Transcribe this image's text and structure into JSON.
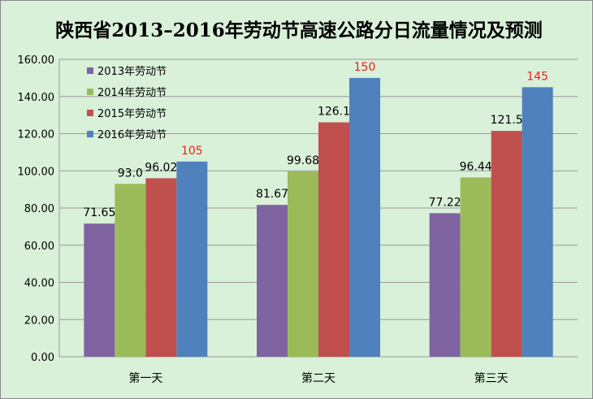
{
  "chart_data": {
    "type": "bar",
    "title": "陕西省2013–2016年劳动节高速公路分日流量情况及预测",
    "categories": [
      "第一天",
      "第二天",
      "第三天"
    ],
    "series": [
      {
        "name": "2013年劳动节",
        "color": "#8064a2",
        "values": [
          71.65,
          81.67,
          77.22
        ],
        "labels": [
          "71.65",
          "81.67",
          "77.22"
        ]
      },
      {
        "name": "2014年劳动节",
        "color": "#9bbb59",
        "values": [
          93.0,
          99.68,
          96.44
        ],
        "labels": [
          "93.0",
          "99.68",
          "96.44"
        ]
      },
      {
        "name": "2015年劳动节",
        "color": "#c0504d",
        "values": [
          96.02,
          126.1,
          121.5
        ],
        "labels": [
          "96.02",
          "126.1",
          "121.5"
        ]
      },
      {
        "name": "2016年劳动节",
        "color": "#4f81bd",
        "values": [
          105,
          150,
          145
        ],
        "labels": [
          "105",
          "150",
          "145"
        ],
        "label_color": "#e8231c"
      }
    ],
    "ylim": [
      0,
      160
    ],
    "yticks": [
      "0.00",
      "20.00",
      "40.00",
      "60.00",
      "80.00",
      "100.00",
      "120.00",
      "140.00",
      "160.00"
    ],
    "grid": true,
    "legend_position": "top-left"
  }
}
